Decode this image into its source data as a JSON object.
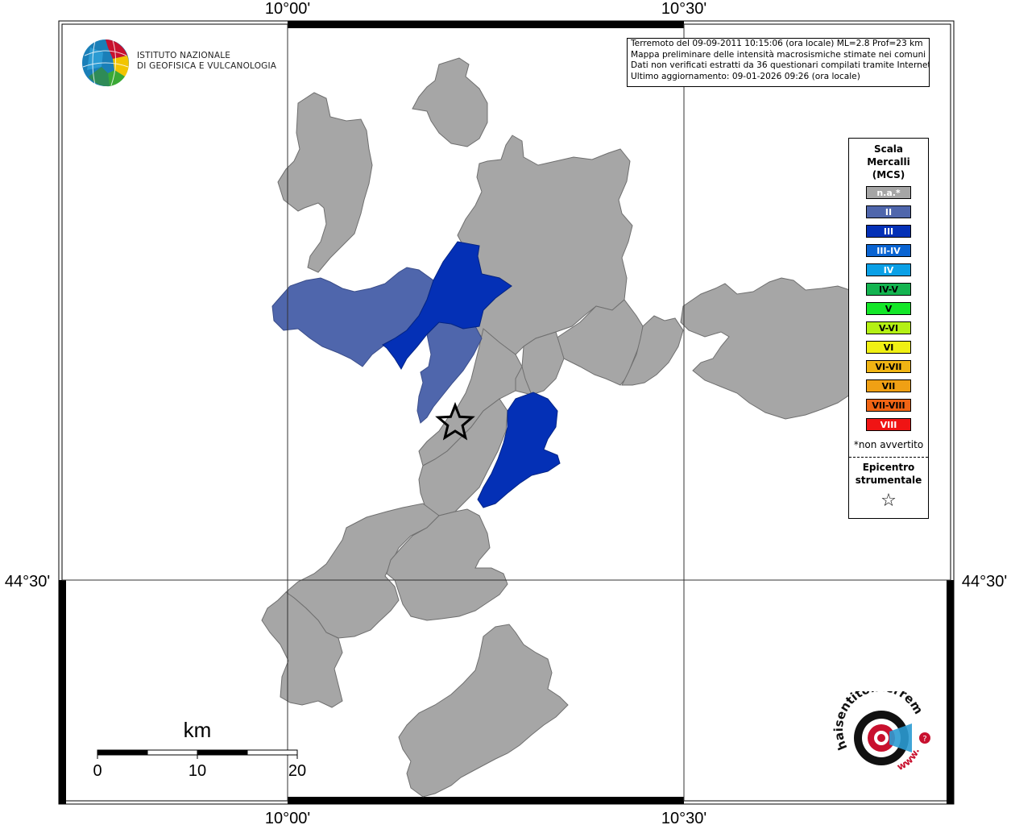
{
  "info": {
    "line1": "Terremoto del 09-09-2011 10:15:06 (ora locale) ML=2.8 Prof=23 km",
    "line2": "Mappa preliminare delle intensità macrosismiche stimate nei comuni",
    "line3": "Dati non verificati estratti da 36 questionari compilati tramite Internet.",
    "line4": "Ultimo aggiornamento: 09-01-2026 09:26 (ora locale)"
  },
  "institute": {
    "line1": "ISTITUTO NAZIONALE",
    "line2": "DI GEOFISICA E VULCANOLOGIA"
  },
  "coords": {
    "top_left": "10°00'",
    "top_right": "10°30'",
    "bottom_left": "10°00'",
    "bottom_right": "10°30'",
    "left": "44°30'",
    "right": "44°30'"
  },
  "scale": {
    "unit": "km",
    "ticks": [
      "0",
      "10",
      "20"
    ]
  },
  "legend": {
    "title_1": "Scala",
    "title_2": "Mercalli",
    "title_3": "(MCS)",
    "items": [
      {
        "label": "n.a.*",
        "color": "#a6a6a6"
      },
      {
        "label": "II",
        "color": "#4f66ac"
      },
      {
        "label": "III",
        "color": "#0430b6"
      },
      {
        "label": "III-IV",
        "color": "#0a64d2"
      },
      {
        "label": "IV",
        "color": "#0aa0e6"
      },
      {
        "label": "IV-V",
        "color": "#14b450"
      },
      {
        "label": "V",
        "color": "#14e628"
      },
      {
        "label": "V-VI",
        "color": "#b4f014"
      },
      {
        "label": "VI",
        "color": "#f0f014"
      },
      {
        "label": "VI-VII",
        "color": "#f0b414"
      },
      {
        "label": "VII",
        "color": "#f0a014"
      },
      {
        "label": "VII-VIII",
        "color": "#f06414"
      },
      {
        "label": "VIII",
        "color": "#f01414"
      }
    ],
    "note": "*non avvertito",
    "epicenter_1": "Epicentro",
    "epicenter_2": "strumentale",
    "epicenter_icon": "star-outline-icon"
  },
  "partner_logo": {
    "text": "haisentitoilterremoto.it",
    "url_text": "www.",
    "icon": "hai-sentito-il-terremoto-logo"
  }
}
